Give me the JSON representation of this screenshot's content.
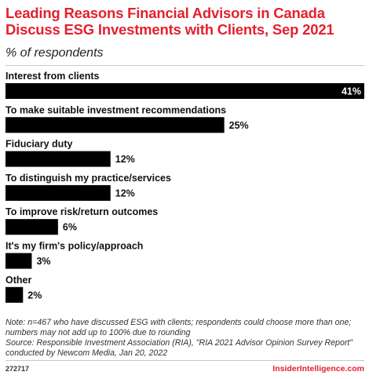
{
  "title": "Leading Reasons Financial Advisors in Canada Discuss ESG Investments with Clients, Sep 2021",
  "subtitle": "% of respondents",
  "note": "Note: n=467 who have discussed ESG with clients; respondents could choose more than one; numbers may not add up to 100% due to rounding",
  "source": "Source: Responsible Investment Association (RIA), \"RIA 2021 Advisor Opinion Survey Report\" conducted by Newcom Media, Jan 20, 2022",
  "footer": {
    "id": "272717",
    "brand": "InsiderIntelligence.com"
  },
  "colors": {
    "title": "#e4202e",
    "bar": "#000000",
    "brand": "#e4202e"
  },
  "chart_data": {
    "type": "bar",
    "orientation": "horizontal",
    "categories": [
      "Interest from clients",
      "To make suitable investment recommendations",
      "Fiduciary duty",
      "To distinguish my practice/services",
      "To improve risk/return outcomes",
      "It's my firm's policy/approach",
      "Other"
    ],
    "values": [
      41,
      25,
      12,
      12,
      6,
      3,
      2
    ],
    "value_labels": [
      "41%",
      "25%",
      "12%",
      "12%",
      "6%",
      "3%",
      "2%"
    ],
    "unit": "%",
    "xlim": [
      0,
      41
    ],
    "grid": false,
    "legend": "none"
  }
}
